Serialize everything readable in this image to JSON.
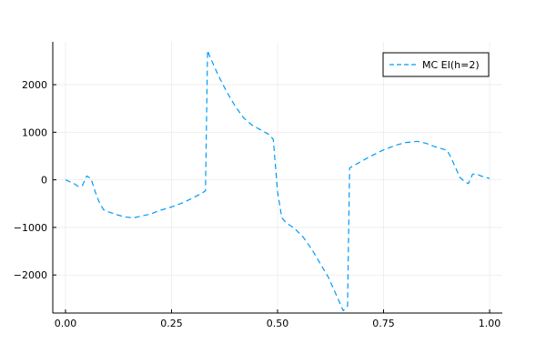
{
  "chart_data": {
    "type": "line",
    "title": "",
    "xlabel": "",
    "ylabel": "",
    "xlim": [
      -0.03,
      1.03
    ],
    "ylim": [
      -2800,
      2900
    ],
    "xticks": [
      0.0,
      0.25,
      0.5,
      0.75,
      1.0
    ],
    "xtick_labels": [
      "0.00",
      "0.25",
      "0.50",
      "0.75",
      "1.00"
    ],
    "yticks": [
      -2000,
      -1000,
      0,
      1000,
      2000
    ],
    "ytick_labels": [
      "−2000",
      "−1000",
      "0",
      "1000",
      "2000"
    ],
    "grid": true,
    "legend_position": "top-right",
    "series": [
      {
        "name": "MC EI(h=2)",
        "color": "#009AFA",
        "line_style": "dashed",
        "x": [
          0.0,
          0.01,
          0.02,
          0.03,
          0.04,
          0.05,
          0.06,
          0.07,
          0.08,
          0.09,
          0.1,
          0.12,
          0.14,
          0.16,
          0.18,
          0.2,
          0.22,
          0.25,
          0.28,
          0.3,
          0.32,
          0.33,
          0.335,
          0.34,
          0.36,
          0.38,
          0.4,
          0.42,
          0.44,
          0.46,
          0.48,
          0.49,
          0.5,
          0.51,
          0.52,
          0.54,
          0.56,
          0.58,
          0.6,
          0.62,
          0.64,
          0.655,
          0.665,
          0.67,
          0.68,
          0.7,
          0.72,
          0.75,
          0.78,
          0.8,
          0.83,
          0.85,
          0.87,
          0.9,
          0.91,
          0.92,
          0.93,
          0.94,
          0.95,
          0.96,
          0.97,
          0.98,
          0.99,
          1.0
        ],
        "y": [
          0,
          -40,
          -80,
          -140,
          -120,
          80,
          30,
          -250,
          -480,
          -630,
          -670,
          -730,
          -780,
          -800,
          -760,
          -720,
          -650,
          -570,
          -470,
          -380,
          -290,
          -230,
          2720,
          2600,
          2200,
          1850,
          1550,
          1300,
          1150,
          1050,
          950,
          850,
          -250,
          -800,
          -900,
          -1020,
          -1200,
          -1450,
          -1750,
          -2050,
          -2450,
          -2750,
          -2650,
          250,
          300,
          400,
          500,
          630,
          730,
          780,
          810,
          770,
          700,
          620,
          450,
          250,
          50,
          -30,
          -80,
          120,
          120,
          80,
          50,
          30
        ]
      }
    ]
  }
}
